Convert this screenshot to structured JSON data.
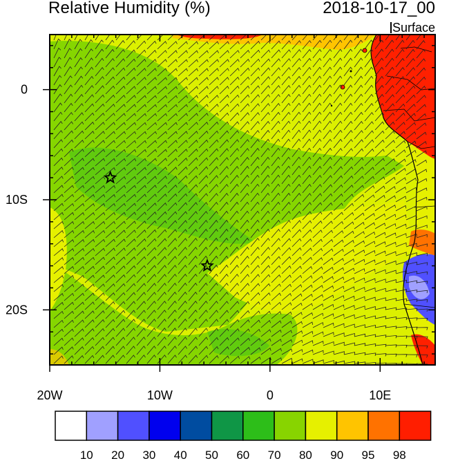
{
  "header": {
    "title": "Relative Humidity (%)",
    "datetime": "2018-10-17_00",
    "level": "Surface"
  },
  "map": {
    "lon_range": [
      -20,
      15
    ],
    "lat_range": [
      -25,
      5
    ],
    "x_ticks": [
      {
        "value": -20,
        "label": "20W"
      },
      {
        "value": -10,
        "label": "10W"
      },
      {
        "value": 0,
        "label": "0"
      },
      {
        "value": 10,
        "label": "10E"
      }
    ],
    "y_ticks": [
      {
        "value": 0,
        "label": "0"
      },
      {
        "value": -10,
        "label": "10S"
      },
      {
        "value": -20,
        "label": "20S"
      }
    ],
    "markers": [
      {
        "name": "star",
        "lon": -14.5,
        "lat": -8
      },
      {
        "name": "star",
        "lon": -5.7,
        "lat": -16
      }
    ],
    "colors": {
      "ocean_base": "#dcf000",
      "ocean_moist": "#86d600",
      "ocean_mid": "#43c21a",
      "land_wet": "#ff2000",
      "land_dry": "#5050ff"
    }
  },
  "legend": {
    "colors": [
      "#ffffff",
      "#a0a0ff",
      "#5050ff",
      "#0000ee",
      "#004ca0",
      "#0f9646",
      "#2dbe19",
      "#88d400",
      "#e6f000",
      "#ffc400",
      "#ff7200",
      "#ff1e00"
    ],
    "labels": [
      "10",
      "20",
      "30",
      "40",
      "50",
      "60",
      "70",
      "80",
      "90",
      "95",
      "98"
    ]
  }
}
